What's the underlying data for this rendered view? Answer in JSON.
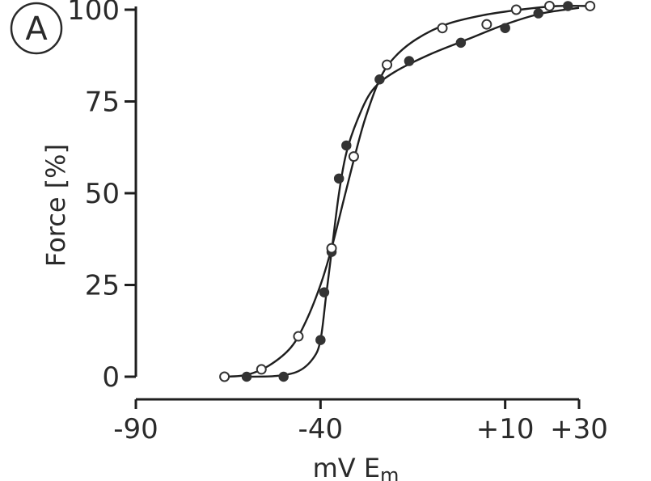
{
  "panel_label": "A",
  "chart_data": {
    "type": "scatter",
    "title": "",
    "xlabel": "mV E",
    "xlabel_sub": "m",
    "ylabel": "Force [%]",
    "xlim": [
      -90,
      30
    ],
    "ylim": [
      0,
      100
    ],
    "x_ticks": [
      -90,
      -40,
      10,
      30
    ],
    "x_tick_labels": [
      "-90",
      "-40",
      "+10",
      "+30"
    ],
    "y_ticks": [
      0,
      25,
      50,
      75,
      100
    ],
    "y_tick_labels": [
      "0",
      "25",
      "50",
      "75",
      "100"
    ],
    "grid": false,
    "legend": "none",
    "series": [
      {
        "marker": "filled-circle",
        "color": "#333333",
        "points": [
          {
            "x": -60,
            "y": 0
          },
          {
            "x": -50,
            "y": 0
          },
          {
            "x": -40,
            "y": 10
          },
          {
            "x": -39,
            "y": 23
          },
          {
            "x": -37,
            "y": 34
          },
          {
            "x": -35,
            "y": 54
          },
          {
            "x": -33,
            "y": 63
          },
          {
            "x": -24,
            "y": 81
          },
          {
            "x": -16,
            "y": 86
          },
          {
            "x": -2,
            "y": 91
          },
          {
            "x": 10,
            "y": 95
          },
          {
            "x": 19,
            "y": 99
          },
          {
            "x": 27,
            "y": 101
          }
        ],
        "curve": [
          [
            -60,
            0
          ],
          [
            -52,
            0.2
          ],
          [
            -46,
            1.5
          ],
          [
            -42,
            5
          ],
          [
            -40,
            10
          ],
          [
            -38.5,
            22
          ],
          [
            -37,
            34
          ],
          [
            -35,
            50
          ],
          [
            -33,
            61
          ],
          [
            -30,
            70
          ],
          [
            -26,
            78
          ],
          [
            -20,
            83
          ],
          [
            -10,
            88
          ],
          [
            0,
            92
          ],
          [
            10,
            96
          ],
          [
            20,
            99
          ],
          [
            30,
            100.5
          ]
        ]
      },
      {
        "marker": "open-circle",
        "color": "#333333",
        "points": [
          {
            "x": -66,
            "y": 0
          },
          {
            "x": -56,
            "y": 2
          },
          {
            "x": -46,
            "y": 11
          },
          {
            "x": -37,
            "y": 35
          },
          {
            "x": -31,
            "y": 60
          },
          {
            "x": -22,
            "y": 85
          },
          {
            "x": -7,
            "y": 95
          },
          {
            "x": 5,
            "y": 96
          },
          {
            "x": 13,
            "y": 100
          },
          {
            "x": 22,
            "y": 101
          },
          {
            "x": 33,
            "y": 101
          }
        ],
        "curve": [
          [
            -66,
            0
          ],
          [
            -60,
            0.5
          ],
          [
            -54,
            3
          ],
          [
            -48,
            8
          ],
          [
            -44,
            15
          ],
          [
            -40,
            25
          ],
          [
            -37,
            35
          ],
          [
            -34,
            47
          ],
          [
            -31,
            59
          ],
          [
            -28,
            70
          ],
          [
            -24,
            81
          ],
          [
            -20,
            87
          ],
          [
            -14,
            92
          ],
          [
            -6,
            96
          ],
          [
            4,
            98.5
          ],
          [
            14,
            100
          ],
          [
            24,
            101
          ],
          [
            33,
            101
          ]
        ]
      }
    ]
  }
}
